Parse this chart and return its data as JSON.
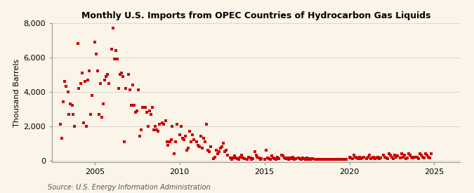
{
  "title": "Monthly U.S. Imports from OPEC Countries of Hydrocarbon Gas Liquids",
  "ylabel": "Thousand Barrels",
  "source": "Source: U.S. Energy Information Administration",
  "marker_color": "#CC0000",
  "background_color": "#FAF5E8",
  "grid_color": "#BBBBBB",
  "xlim": [
    2002.5,
    2026.5
  ],
  "ylim": [
    -100,
    8000
  ],
  "yticks": [
    0,
    2000,
    4000,
    6000,
    8000
  ],
  "xticks": [
    2005,
    2010,
    2015,
    2020,
    2025
  ],
  "data_points": [
    [
      2003.0,
      2100
    ],
    [
      2003.08,
      1300
    ],
    [
      2003.17,
      3400
    ],
    [
      2003.25,
      4600
    ],
    [
      2003.33,
      4300
    ],
    [
      2003.42,
      4000
    ],
    [
      2003.5,
      2700
    ],
    [
      2003.58,
      3300
    ],
    [
      2003.67,
      3200
    ],
    [
      2003.75,
      2700
    ],
    [
      2003.83,
      2000
    ],
    [
      2004.0,
      6800
    ],
    [
      2004.08,
      4200
    ],
    [
      2004.17,
      4500
    ],
    [
      2004.25,
      5100
    ],
    [
      2004.33,
      2200
    ],
    [
      2004.42,
      4600
    ],
    [
      2004.5,
      2000
    ],
    [
      2004.58,
      4700
    ],
    [
      2004.67,
      5200
    ],
    [
      2004.75,
      2700
    ],
    [
      2004.83,
      3800
    ],
    [
      2005.0,
      6900
    ],
    [
      2005.08,
      6200
    ],
    [
      2005.17,
      5200
    ],
    [
      2005.25,
      2700
    ],
    [
      2005.33,
      4500
    ],
    [
      2005.42,
      2500
    ],
    [
      2005.5,
      3300
    ],
    [
      2005.58,
      4700
    ],
    [
      2005.67,
      4900
    ],
    [
      2005.75,
      5000
    ],
    [
      2005.83,
      4500
    ],
    [
      2006.0,
      6500
    ],
    [
      2006.08,
      7700
    ],
    [
      2006.17,
      5900
    ],
    [
      2006.25,
      6400
    ],
    [
      2006.33,
      5900
    ],
    [
      2006.42,
      4200
    ],
    [
      2006.5,
      5000
    ],
    [
      2006.58,
      5100
    ],
    [
      2006.67,
      4900
    ],
    [
      2006.75,
      1100
    ],
    [
      2006.83,
      4200
    ],
    [
      2007.0,
      5000
    ],
    [
      2007.08,
      4100
    ],
    [
      2007.17,
      3200
    ],
    [
      2007.25,
      4400
    ],
    [
      2007.33,
      3200
    ],
    [
      2007.42,
      2800
    ],
    [
      2007.5,
      2900
    ],
    [
      2007.58,
      4100
    ],
    [
      2007.67,
      1400
    ],
    [
      2007.75,
      1800
    ],
    [
      2007.83,
      3100
    ],
    [
      2008.0,
      3100
    ],
    [
      2008.08,
      2800
    ],
    [
      2008.17,
      2000
    ],
    [
      2008.25,
      2900
    ],
    [
      2008.33,
      2700
    ],
    [
      2008.42,
      3100
    ],
    [
      2008.5,
      1800
    ],
    [
      2008.58,
      2000
    ],
    [
      2008.67,
      1800
    ],
    [
      2008.75,
      1700
    ],
    [
      2008.83,
      2100
    ],
    [
      2009.0,
      2200
    ],
    [
      2009.08,
      2100
    ],
    [
      2009.17,
      2300
    ],
    [
      2009.25,
      1100
    ],
    [
      2009.33,
      900
    ],
    [
      2009.42,
      1100
    ],
    [
      2009.5,
      1200
    ],
    [
      2009.58,
      2000
    ],
    [
      2009.67,
      400
    ],
    [
      2009.75,
      1100
    ],
    [
      2009.83,
      2100
    ],
    [
      2010.0,
      1500
    ],
    [
      2010.08,
      2000
    ],
    [
      2010.17,
      1300
    ],
    [
      2010.25,
      1200
    ],
    [
      2010.33,
      1400
    ],
    [
      2010.42,
      600
    ],
    [
      2010.5,
      700
    ],
    [
      2010.58,
      1700
    ],
    [
      2010.67,
      1100
    ],
    [
      2010.75,
      1500
    ],
    [
      2010.83,
      1200
    ],
    [
      2011.0,
      1100
    ],
    [
      2011.08,
      900
    ],
    [
      2011.17,
      800
    ],
    [
      2011.25,
      1400
    ],
    [
      2011.33,
      700
    ],
    [
      2011.42,
      1300
    ],
    [
      2011.5,
      1100
    ],
    [
      2011.58,
      2100
    ],
    [
      2011.67,
      600
    ],
    [
      2011.75,
      500
    ],
    [
      2011.83,
      800
    ],
    [
      2012.0,
      100
    ],
    [
      2012.08,
      200
    ],
    [
      2012.17,
      600
    ],
    [
      2012.25,
      400
    ],
    [
      2012.33,
      500
    ],
    [
      2012.42,
      700
    ],
    [
      2012.5,
      800
    ],
    [
      2012.58,
      1000
    ],
    [
      2012.67,
      500
    ],
    [
      2012.75,
      600
    ],
    [
      2012.83,
      300
    ],
    [
      2013.0,
      150
    ],
    [
      2013.08,
      80
    ],
    [
      2013.17,
      150
    ],
    [
      2013.25,
      250
    ],
    [
      2013.33,
      150
    ],
    [
      2013.42,
      100
    ],
    [
      2013.5,
      80
    ],
    [
      2013.58,
      200
    ],
    [
      2013.67,
      300
    ],
    [
      2013.75,
      150
    ],
    [
      2013.83,
      100
    ],
    [
      2014.0,
      80
    ],
    [
      2014.08,
      200
    ],
    [
      2014.17,
      150
    ],
    [
      2014.25,
      80
    ],
    [
      2014.33,
      100
    ],
    [
      2014.42,
      500
    ],
    [
      2014.5,
      300
    ],
    [
      2014.58,
      200
    ],
    [
      2014.67,
      150
    ],
    [
      2014.75,
      80
    ],
    [
      2014.83,
      100
    ],
    [
      2015.0,
      80
    ],
    [
      2015.08,
      600
    ],
    [
      2015.17,
      150
    ],
    [
      2015.25,
      100
    ],
    [
      2015.33,
      80
    ],
    [
      2015.42,
      250
    ],
    [
      2015.5,
      150
    ],
    [
      2015.58,
      100
    ],
    [
      2015.67,
      80
    ],
    [
      2015.75,
      200
    ],
    [
      2015.83,
      100
    ],
    [
      2016.0,
      300
    ],
    [
      2016.08,
      250
    ],
    [
      2016.17,
      150
    ],
    [
      2016.25,
      100
    ],
    [
      2016.33,
      150
    ],
    [
      2016.42,
      80
    ],
    [
      2016.5,
      150
    ],
    [
      2016.58,
      100
    ],
    [
      2016.67,
      200
    ],
    [
      2016.75,
      80
    ],
    [
      2016.83,
      100
    ],
    [
      2017.0,
      150
    ],
    [
      2017.08,
      100
    ],
    [
      2017.17,
      80
    ],
    [
      2017.25,
      150
    ],
    [
      2017.33,
      100
    ],
    [
      2017.42,
      80
    ],
    [
      2017.5,
      150
    ],
    [
      2017.58,
      80
    ],
    [
      2017.67,
      100
    ],
    [
      2017.75,
      80
    ],
    [
      2017.83,
      100
    ],
    [
      2018.0,
      80
    ],
    [
      2018.08,
      80
    ],
    [
      2018.17,
      80
    ],
    [
      2018.25,
      80
    ],
    [
      2018.33,
      80
    ],
    [
      2018.42,
      80
    ],
    [
      2018.5,
      80
    ],
    [
      2018.58,
      80
    ],
    [
      2018.67,
      80
    ],
    [
      2018.75,
      80
    ],
    [
      2018.83,
      80
    ],
    [
      2019.0,
      80
    ],
    [
      2019.08,
      80
    ],
    [
      2019.17,
      80
    ],
    [
      2019.25,
      80
    ],
    [
      2019.33,
      80
    ],
    [
      2019.42,
      80
    ],
    [
      2019.5,
      80
    ],
    [
      2019.58,
      80
    ],
    [
      2019.67,
      80
    ],
    [
      2019.75,
      80
    ],
    [
      2019.83,
      80
    ],
    [
      2020.0,
      200
    ],
    [
      2020.08,
      150
    ],
    [
      2020.17,
      100
    ],
    [
      2020.25,
      300
    ],
    [
      2020.33,
      200
    ],
    [
      2020.42,
      150
    ],
    [
      2020.5,
      100
    ],
    [
      2020.58,
      200
    ],
    [
      2020.67,
      100
    ],
    [
      2020.75,
      150
    ],
    [
      2020.83,
      200
    ],
    [
      2021.0,
      100
    ],
    [
      2021.08,
      200
    ],
    [
      2021.17,
      300
    ],
    [
      2021.25,
      100
    ],
    [
      2021.33,
      150
    ],
    [
      2021.42,
      200
    ],
    [
      2021.5,
      100
    ],
    [
      2021.58,
      150
    ],
    [
      2021.67,
      200
    ],
    [
      2021.75,
      100
    ],
    [
      2021.83,
      150
    ],
    [
      2022.0,
      300
    ],
    [
      2022.08,
      200
    ],
    [
      2022.17,
      150
    ],
    [
      2022.25,
      100
    ],
    [
      2022.33,
      400
    ],
    [
      2022.42,
      300
    ],
    [
      2022.5,
      200
    ],
    [
      2022.58,
      100
    ],
    [
      2022.67,
      300
    ],
    [
      2022.75,
      200
    ],
    [
      2022.83,
      250
    ],
    [
      2023.0,
      150
    ],
    [
      2023.08,
      400
    ],
    [
      2023.17,
      200
    ],
    [
      2023.25,
      300
    ],
    [
      2023.33,
      100
    ],
    [
      2023.42,
      150
    ],
    [
      2023.5,
      400
    ],
    [
      2023.58,
      300
    ],
    [
      2023.67,
      200
    ],
    [
      2023.75,
      150
    ],
    [
      2023.83,
      200
    ],
    [
      2024.0,
      200
    ],
    [
      2024.08,
      100
    ],
    [
      2024.17,
      400
    ],
    [
      2024.25,
      300
    ],
    [
      2024.33,
      200
    ],
    [
      2024.42,
      150
    ],
    [
      2024.5,
      400
    ],
    [
      2024.58,
      300
    ],
    [
      2024.67,
      200
    ],
    [
      2024.75,
      150
    ],
    [
      2024.83,
      400
    ]
  ]
}
